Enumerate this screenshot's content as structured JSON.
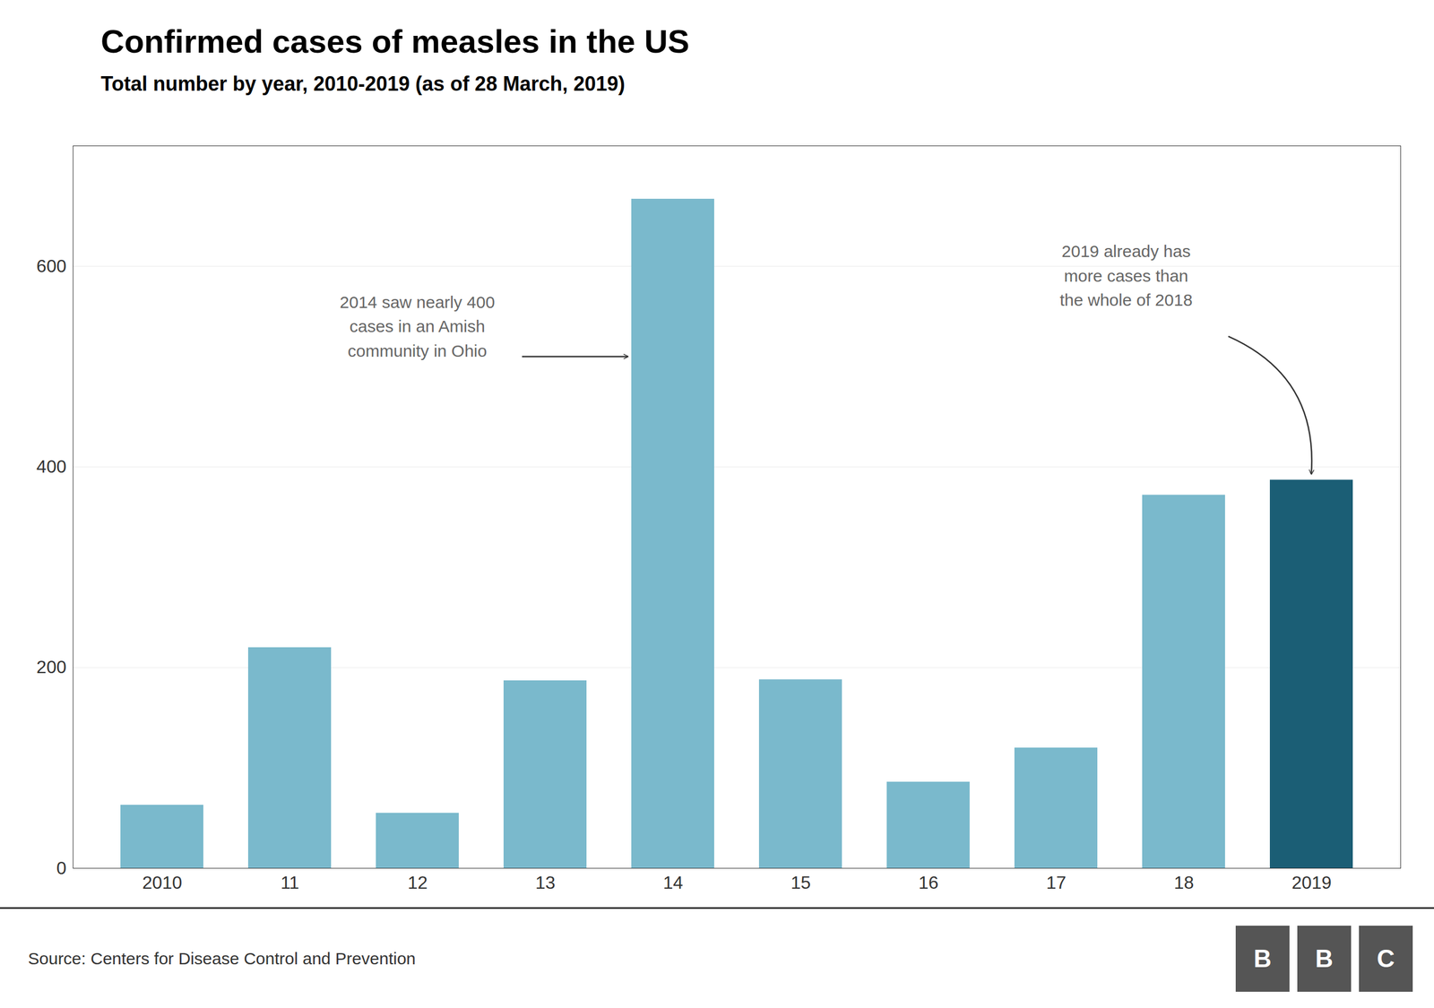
{
  "chart_data": {
    "type": "bar",
    "title": "Confirmed cases of measles in the US",
    "subtitle": "Total number by year, 2010-2019 (as of 28 March, 2019)",
    "source": "Source: Centers for Disease Control and Prevention",
    "logo": "BBC",
    "categories": [
      "2010",
      "11",
      "12",
      "13",
      "14",
      "15",
      "16",
      "17",
      "18",
      "2019"
    ],
    "values": [
      63,
      220,
      55,
      187,
      667,
      188,
      86,
      120,
      372,
      387
    ],
    "colors": [
      "#7ab9cc",
      "#7ab9cc",
      "#7ab9cc",
      "#7ab9cc",
      "#7ab9cc",
      "#7ab9cc",
      "#7ab9cc",
      "#7ab9cc",
      "#7ab9cc",
      "#1b5e75"
    ],
    "ylim": [
      0,
      720
    ],
    "yticks": [
      0,
      200,
      400,
      600
    ],
    "grid": true,
    "annotations": [
      {
        "text": "2014 saw nearly 400\ncases in an Amish\ncommunity in Ohio",
        "category": "14"
      },
      {
        "text": "2019 already has\nmore cases than\nthe whole of 2018",
        "category": "2019"
      }
    ]
  }
}
